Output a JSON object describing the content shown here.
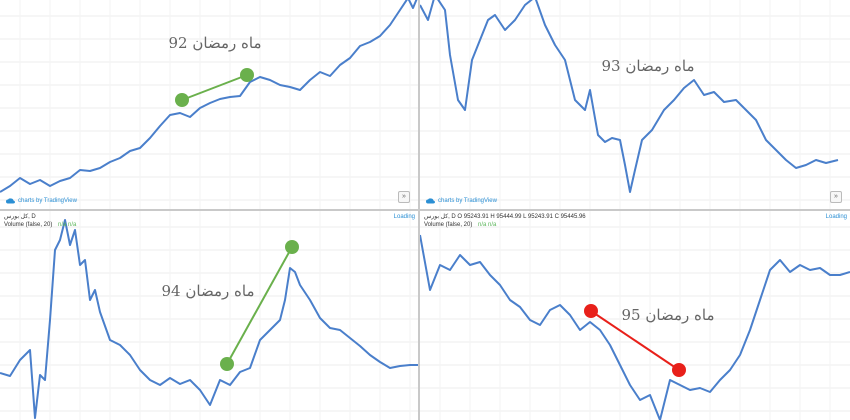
{
  "header": {
    "symbol": "کل بورس, D",
    "ohlc": "O 95243.91  H 95444.99  L 95243.91  C 95445.96",
    "volume_label": "Volume (false, 20)",
    "volume_value": "n/a  n/a",
    "loading": "Loading"
  },
  "branding": {
    "text": "charts by TradingView"
  },
  "colors": {
    "line": "#4a7fcb",
    "positive": "#6ab04c",
    "negative": "#e8201a",
    "label": "#666666"
  },
  "chart_data": [
    {
      "type": "line",
      "title": "",
      "grid": true,
      "series": [
        {
          "points": [
            [
              0,
              192
            ],
            [
              10,
              186
            ],
            [
              20,
              178
            ],
            [
              30,
              184
            ],
            [
              40,
              180
            ],
            [
              50,
              186
            ],
            [
              60,
              181
            ],
            [
              70,
              178
            ],
            [
              80,
              170
            ],
            [
              90,
              171
            ],
            [
              100,
              168
            ],
            [
              110,
              162
            ],
            [
              120,
              158
            ],
            [
              130,
              151
            ],
            [
              140,
              148
            ],
            [
              150,
              138
            ],
            [
              160,
              126
            ],
            [
              170,
              115
            ],
            [
              180,
              113
            ],
            [
              190,
              117
            ],
            [
              200,
              108
            ],
            [
              210,
              103
            ],
            [
              220,
              99
            ],
            [
              230,
              97
            ],
            [
              240,
              96
            ],
            [
              250,
              82
            ],
            [
              260,
              77
            ],
            [
              270,
              80
            ],
            [
              280,
              85
            ],
            [
              290,
              87
            ],
            [
              300,
              90
            ],
            [
              310,
              80
            ],
            [
              320,
              72
            ],
            [
              330,
              76
            ],
            [
              340,
              65
            ],
            [
              350,
              58
            ],
            [
              360,
              46
            ],
            [
              370,
              42
            ],
            [
              380,
              36
            ],
            [
              390,
              25
            ],
            [
              400,
              10
            ],
            [
              408,
              -2
            ],
            [
              413,
              8
            ],
            [
              418,
              -4
            ]
          ]
        }
      ],
      "annotation": {
        "label": "ماه رمضان 92",
        "color": "positive",
        "start": [
          182,
          100
        ],
        "end": [
          247,
          75
        ]
      }
    },
    {
      "type": "line",
      "title": "",
      "grid": true,
      "series": [
        {
          "points": [
            [
              0,
              5
            ],
            [
              8,
              20
            ],
            [
              15,
              -5
            ],
            [
              25,
              10
            ],
            [
              30,
              55
            ],
            [
              38,
              100
            ],
            [
              45,
              110
            ],
            [
              52,
              60
            ],
            [
              60,
              40
            ],
            [
              68,
              20
            ],
            [
              75,
              15
            ],
            [
              85,
              30
            ],
            [
              95,
              20
            ],
            [
              105,
              5
            ],
            [
              115,
              -3
            ],
            [
              125,
              25
            ],
            [
              135,
              45
            ],
            [
              145,
              60
            ],
            [
              155,
              100
            ],
            [
              165,
              110
            ],
            [
              170,
              90
            ],
            [
              178,
              135
            ],
            [
              185,
              142
            ],
            [
              192,
              138
            ],
            [
              200,
              140
            ],
            [
              205,
              165
            ],
            [
              210,
              192
            ],
            [
              215,
              170
            ],
            [
              222,
              140
            ],
            [
              232,
              130
            ],
            [
              244,
              110
            ],
            [
              254,
              100
            ],
            [
              264,
              88
            ],
            [
              274,
              80
            ],
            [
              284,
              95
            ],
            [
              294,
              92
            ],
            [
              304,
              102
            ],
            [
              316,
              100
            ],
            [
              326,
              110
            ],
            [
              336,
              120
            ],
            [
              346,
              140
            ],
            [
              356,
              150
            ],
            [
              366,
              160
            ],
            [
              376,
              168
            ],
            [
              386,
              165
            ],
            [
              396,
              160
            ],
            [
              406,
              163
            ],
            [
              418,
              160
            ]
          ]
        }
      ],
      "annotation": {
        "label": "ماه رمضان 93",
        "color": "positive",
        "start": [
          209,
          140
        ],
        "end": [
          273,
          69
        ]
      }
    },
    {
      "type": "line",
      "title": "",
      "grid": true,
      "series": [
        {
          "points": [
            [
              0,
              373
            ],
            [
              10,
              376
            ],
            [
              20,
              360
            ],
            [
              30,
              350
            ],
            [
              35,
              418
            ],
            [
              40,
              375
            ],
            [
              45,
              380
            ],
            [
              50,
              320
            ],
            [
              55,
              250
            ],
            [
              60,
              240
            ],
            [
              65,
              220
            ],
            [
              70,
              245
            ],
            [
              75,
              230
            ],
            [
              80,
              265
            ],
            [
              85,
              260
            ],
            [
              90,
              300
            ],
            [
              95,
              290
            ],
            [
              100,
              312
            ],
            [
              110,
              340
            ],
            [
              120,
              345
            ],
            [
              130,
              355
            ],
            [
              140,
              370
            ],
            [
              150,
              380
            ],
            [
              160,
              385
            ],
            [
              170,
              378
            ],
            [
              180,
              384
            ],
            [
              190,
              380
            ],
            [
              200,
              390
            ],
            [
              210,
              405
            ],
            [
              220,
              380
            ],
            [
              230,
              385
            ],
            [
              240,
              372
            ],
            [
              250,
              368
            ],
            [
              260,
              340
            ],
            [
              270,
              330
            ],
            [
              280,
              320
            ],
            [
              285,
              300
            ],
            [
              290,
              268
            ],
            [
              295,
              272
            ],
            [
              300,
              285
            ],
            [
              310,
              300
            ],
            [
              320,
              318
            ],
            [
              330,
              328
            ],
            [
              340,
              330
            ],
            [
              350,
              338
            ],
            [
              360,
              346
            ],
            [
              370,
              355
            ],
            [
              380,
              362
            ],
            [
              390,
              368
            ],
            [
              400,
              366
            ],
            [
              410,
              365
            ],
            [
              418,
              365
            ]
          ]
        }
      ],
      "annotation": {
        "label": "ماه رمضان 94",
        "color": "positive",
        "start": [
          227,
          364
        ],
        "end": [
          292,
          247
        ]
      }
    },
    {
      "type": "line",
      "title": "",
      "grid": true,
      "series": [
        {
          "points": [
            [
              0,
              235
            ],
            [
              10,
              290
            ],
            [
              20,
              265
            ],
            [
              30,
              270
            ],
            [
              40,
              255
            ],
            [
              50,
              265
            ],
            [
              60,
              262
            ],
            [
              70,
              275
            ],
            [
              80,
              285
            ],
            [
              90,
              300
            ],
            [
              100,
              307
            ],
            [
              110,
              320
            ],
            [
              120,
              325
            ],
            [
              130,
              310
            ],
            [
              140,
              305
            ],
            [
              150,
              315
            ],
            [
              160,
              330
            ],
            [
              170,
              322
            ],
            [
              180,
              330
            ],
            [
              190,
              345
            ],
            [
              200,
              365
            ],
            [
              210,
              385
            ],
            [
              220,
              400
            ],
            [
              230,
              395
            ],
            [
              240,
              420
            ],
            [
              250,
              380
            ],
            [
              260,
              385
            ],
            [
              270,
              390
            ],
            [
              280,
              388
            ],
            [
              290,
              392
            ],
            [
              300,
              380
            ],
            [
              310,
              370
            ],
            [
              320,
              355
            ],
            [
              330,
              330
            ],
            [
              340,
              300
            ],
            [
              350,
              270
            ],
            [
              360,
              260
            ],
            [
              370,
              272
            ],
            [
              380,
              265
            ],
            [
              390,
              270
            ],
            [
              400,
              268
            ],
            [
              410,
              275
            ],
            [
              420,
              275
            ],
            [
              430,
              272
            ]
          ]
        }
      ],
      "annotation": {
        "label": "ماه رمضان 95",
        "color": "negative",
        "start": [
          591,
          311
        ],
        "end": [
          679,
          370
        ]
      }
    }
  ]
}
